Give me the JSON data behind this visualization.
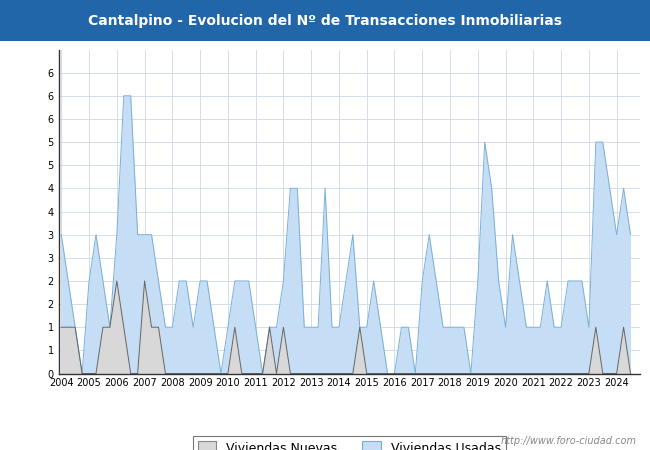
{
  "title": "Cantalpino - Evolucion del Nº de Transacciones Inmobiliarias",
  "title_bgcolor": "#2266aa",
  "title_color": "white",
  "ylim": [
    0,
    7
  ],
  "legend_nuevas": "Viviendas Nuevas",
  "legend_usadas": "Viviendas Usadas",
  "url": "http://www.foro-ciudad.com",
  "color_nuevas": "#d8d8d8",
  "color_usadas": "#c5ddf5",
  "color_line_nuevas": "#666666",
  "color_line_usadas": "#7ab0d8",
  "start_year": 2004,
  "nuevas": [
    1,
    1,
    1,
    0,
    0,
    0,
    1,
    1,
    2,
    1,
    0,
    0,
    2,
    1,
    1,
    0,
    0,
    0,
    0,
    0,
    0,
    0,
    0,
    0,
    0,
    1,
    0,
    0,
    0,
    0,
    1,
    0,
    1,
    0,
    0,
    0,
    0,
    0,
    0,
    0,
    0,
    0,
    0,
    1,
    0,
    0,
    0,
    0,
    0,
    0,
    0,
    0,
    0,
    0,
    0,
    0,
    0,
    0,
    0,
    0,
    0,
    0,
    0,
    0,
    0,
    0,
    0,
    0,
    0,
    0,
    0,
    0,
    0,
    0,
    0,
    0,
    0,
    1,
    0,
    0,
    0,
    1,
    0
  ],
  "usadas": [
    3,
    2,
    1,
    0,
    2,
    3,
    2,
    1,
    3,
    6,
    6,
    3,
    3,
    3,
    2,
    1,
    1,
    2,
    2,
    1,
    2,
    2,
    1,
    0,
    1,
    2,
    2,
    2,
    1,
    0,
    1,
    1,
    2,
    4,
    4,
    1,
    1,
    1,
    4,
    1,
    1,
    2,
    3,
    1,
    1,
    2,
    1,
    0,
    0,
    1,
    1,
    0,
    2,
    3,
    2,
    1,
    1,
    1,
    1,
    0,
    2,
    5,
    4,
    2,
    1,
    3,
    2,
    1,
    1,
    1,
    2,
    1,
    1,
    2,
    2,
    2,
    1,
    5,
    5,
    4,
    3,
    4,
    3
  ]
}
